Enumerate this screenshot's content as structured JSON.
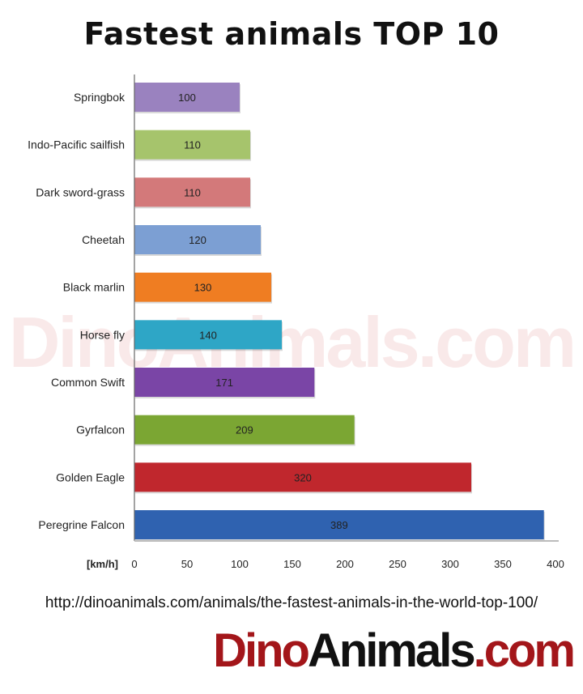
{
  "chart_data": {
    "type": "bar",
    "orientation": "horizontal",
    "title": "Fastest animals TOP 10",
    "xlabel": "[km/h]",
    "categories": [
      "Springbok",
      "Indo-Pacific sailfish",
      "Dark sword-grass",
      "Cheetah",
      "Black marlin",
      "Horse fly",
      "Common Swift",
      "Gyrfalcon",
      "Golden Eagle",
      "Peregrine Falcon"
    ],
    "values": [
      100,
      110,
      110,
      120,
      130,
      140,
      171,
      209,
      320,
      389
    ],
    "colors": [
      "#9a82bf",
      "#a6c46c",
      "#d3797a",
      "#7c9fd3",
      "#ef7d22",
      "#2ea6c6",
      "#7a45a6",
      "#7ba633",
      "#c0272d",
      "#2f62b0"
    ],
    "xlim": [
      0,
      400
    ],
    "xticks": [
      0,
      50,
      100,
      150,
      200,
      250,
      300,
      350,
      400
    ],
    "grid": false,
    "legend": "none",
    "data_labels": true
  },
  "watermark": "DinoAnimals.com",
  "source_url": "http://dinoanimals.com/animals/the-fastest-animals-in-the-world-top-100/",
  "logo": {
    "part1": "Dino",
    "part2": "Animals",
    "part3": ".com"
  }
}
